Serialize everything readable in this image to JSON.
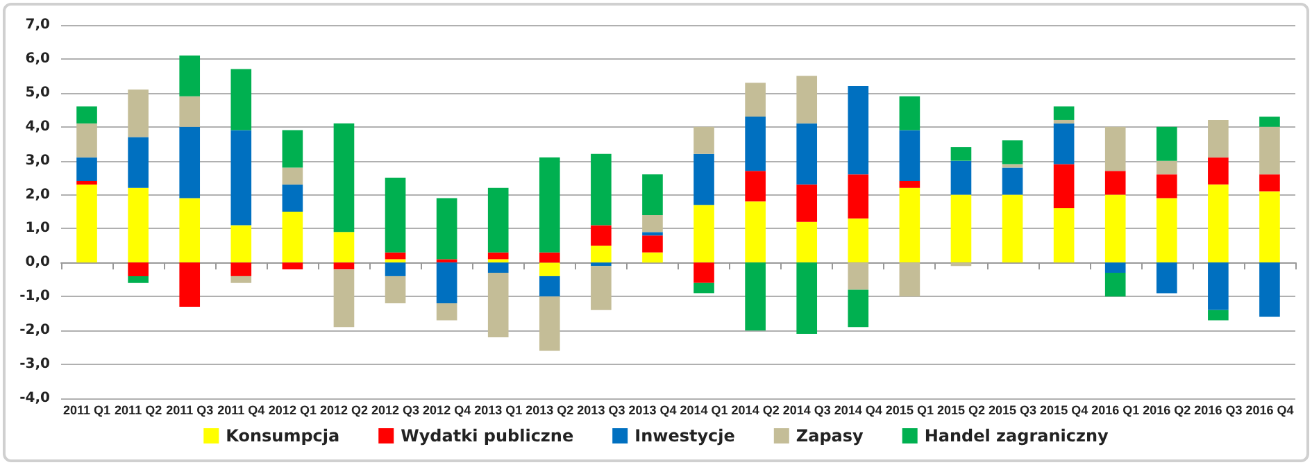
{
  "chart_data": {
    "type": "bar",
    "stacked": true,
    "grid": "y",
    "legend": "bottom",
    "categories": [
      "2011 Q1",
      "2011 Q2",
      "2011 Q3",
      "2011 Q4",
      "2012 Q1",
      "2012 Q2",
      "2012 Q3",
      "2012 Q4",
      "2013 Q1",
      "2013 Q2",
      "2013 Q3",
      "2013 Q4",
      "2014 Q1",
      "2014 Q2",
      "2014 Q3",
      "2014 Q4",
      "2015 Q1",
      "2015 Q2",
      "2015 Q3",
      "2015 Q4",
      "2016 Q1",
      "2016 Q2",
      "2016 Q3",
      "2016 Q4"
    ],
    "ylim": [
      -4,
      7
    ],
    "yticks": [
      {
        "value": -4,
        "label": "-4,0"
      },
      {
        "value": -3,
        "label": "-3,0"
      },
      {
        "value": -2,
        "label": "-2,0"
      },
      {
        "value": -1,
        "label": "-1,0"
      },
      {
        "value": 0,
        "label": "0,0"
      },
      {
        "value": 1,
        "label": "1,0"
      },
      {
        "value": 2,
        "label": "2,0"
      },
      {
        "value": 3,
        "label": "3,0"
      },
      {
        "value": 4,
        "label": "4,0"
      },
      {
        "value": 5,
        "label": "5,0"
      },
      {
        "value": 6,
        "label": "6,0"
      },
      {
        "value": 7,
        "label": "7,0"
      }
    ],
    "series": [
      {
        "name": "Konsumpcja",
        "color": "#ffff00",
        "values": [
          2.3,
          2.2,
          1.9,
          1.1,
          1.5,
          0.9,
          0.1,
          0,
          0.1,
          -0.4,
          0.5,
          0.3,
          1.7,
          1.8,
          1.2,
          1.3,
          2.2,
          2.0,
          2.0,
          1.6,
          2.0,
          1.9,
          2.3,
          2.1
        ]
      },
      {
        "name": "Wydatki publiczne",
        "color": "#ff0000",
        "values": [
          0.1,
          -0.4,
          -1.3,
          -0.4,
          -0.2,
          -0.2,
          0.2,
          0.1,
          0.2,
          0.3,
          0.6,
          0.5,
          -0.6,
          0.9,
          1.1,
          1.3,
          0.2,
          0,
          0,
          1.3,
          0.7,
          0.7,
          0.8,
          0.5
        ]
      },
      {
        "name": "Inwestycje",
        "color": "#0070c0",
        "values": [
          0.7,
          1.5,
          2.1,
          2.8,
          0.8,
          0,
          -0.4,
          -1.2,
          -0.3,
          -0.6,
          -0.1,
          0.1,
          1.5,
          1.6,
          1.8,
          2.6,
          1.5,
          1.0,
          0.8,
          1.2,
          -0.3,
          -0.9,
          -1.4,
          -1.6
        ]
      },
      {
        "name": "Zapasy",
        "color": "#c4bd97",
        "values": [
          1.0,
          1.4,
          0.9,
          -0.2,
          0.5,
          -1.7,
          -0.8,
          -0.5,
          -1.9,
          -1.6,
          -1.3,
          0.5,
          0.8,
          1.0,
          1.4,
          -0.8,
          -1.0,
          -0.1,
          0.1,
          0.1,
          1.3,
          0.4,
          1.1,
          1.4
        ]
      },
      {
        "name": "Handel zagraniczny",
        "color": "#00b050",
        "values": [
          0.5,
          -0.2,
          1.2,
          1.8,
          1.1,
          3.2,
          2.2,
          1.8,
          1.9,
          2.8,
          2.1,
          1.2,
          -0.3,
          -2.0,
          -2.1,
          -1.1,
          1.0,
          0.4,
          0.7,
          0.4,
          -0.7,
          1.0,
          -0.3,
          0.3
        ]
      }
    ]
  }
}
